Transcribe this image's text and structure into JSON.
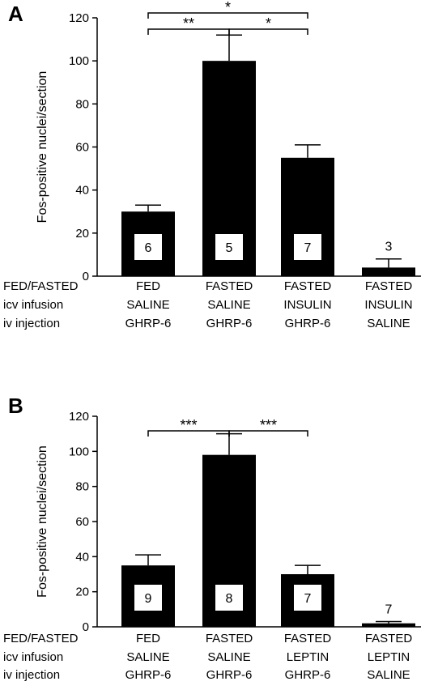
{
  "chart_data": [
    {
      "panel": "A",
      "type": "bar",
      "ylabel": "Fos-positive nuclei/section",
      "ylim": [
        0,
        120
      ],
      "yticks": [
        0,
        20,
        40,
        60,
        80,
        100,
        120
      ],
      "row_labels": [
        "FED/FASTED",
        "icv infusion",
        "iv injection"
      ],
      "categories": [
        [
          "FED",
          "SALINE",
          "GHRP-6"
        ],
        [
          "FASTED",
          "SALINE",
          "GHRP-6"
        ],
        [
          "FASTED",
          "INSULIN",
          "GHRP-6"
        ],
        [
          "FASTED",
          "INSULIN",
          "SALINE"
        ]
      ],
      "values": [
        30,
        100,
        55,
        4
      ],
      "errors": [
        3,
        12,
        6,
        4
      ],
      "n": [
        "6",
        "5",
        "7",
        "3"
      ],
      "significance": [
        {
          "from": 0,
          "to": 1,
          "label": "**"
        },
        {
          "from": 1,
          "to": 2,
          "label": "*"
        },
        {
          "from": 0,
          "to": 2,
          "label": "*"
        }
      ],
      "bar_color": "#000000"
    },
    {
      "panel": "B",
      "type": "bar",
      "ylabel": "Fos-positive nuclei/section",
      "ylim": [
        0,
        120
      ],
      "yticks": [
        0,
        20,
        40,
        60,
        80,
        100,
        120
      ],
      "row_labels": [
        "FED/FASTED",
        "icv infusion",
        "iv injection"
      ],
      "categories": [
        [
          "FED",
          "SALINE",
          "GHRP-6"
        ],
        [
          "FASTED",
          "SALINE",
          "GHRP-6"
        ],
        [
          "FASTED",
          "LEPTIN",
          "GHRP-6"
        ],
        [
          "FASTED",
          "LEPTIN",
          "SALINE"
        ]
      ],
      "values": [
        35,
        98,
        30,
        2
      ],
      "errors": [
        6,
        12,
        5,
        1
      ],
      "n": [
        "9",
        "8",
        "7",
        "7"
      ],
      "significance": [
        {
          "from": 0,
          "to": 1,
          "label": "***"
        },
        {
          "from": 1,
          "to": 2,
          "label": "***"
        }
      ],
      "bar_color": "#000000"
    }
  ]
}
